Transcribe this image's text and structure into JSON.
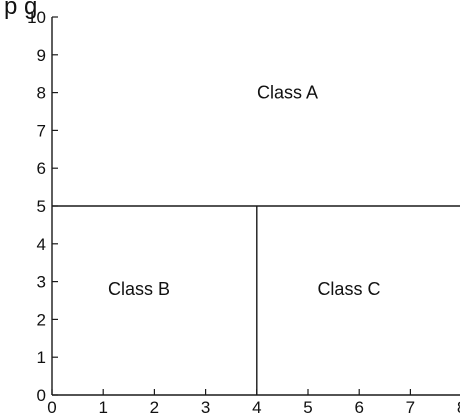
{
  "header_fragment": "p                g",
  "axes": {
    "x_ticks": [
      "0",
      "1",
      "2",
      "3",
      "4",
      "5",
      "6",
      "7",
      "8"
    ],
    "y_ticks": [
      "0",
      "1",
      "2",
      "3",
      "4",
      "5",
      "6",
      "7",
      "8",
      "9",
      "10"
    ],
    "xlim": [
      0,
      8
    ],
    "ylim": [
      0,
      10
    ]
  },
  "partition": {
    "horizontal_boundary_y": 5,
    "vertical_boundary_x": 4
  },
  "regions": [
    {
      "label": "Class A",
      "center": [
        4.6,
        8.0
      ]
    },
    {
      "label": "Class B",
      "center": [
        1.7,
        2.8
      ]
    },
    {
      "label": "Class C",
      "center": [
        5.8,
        2.8
      ]
    }
  ]
}
